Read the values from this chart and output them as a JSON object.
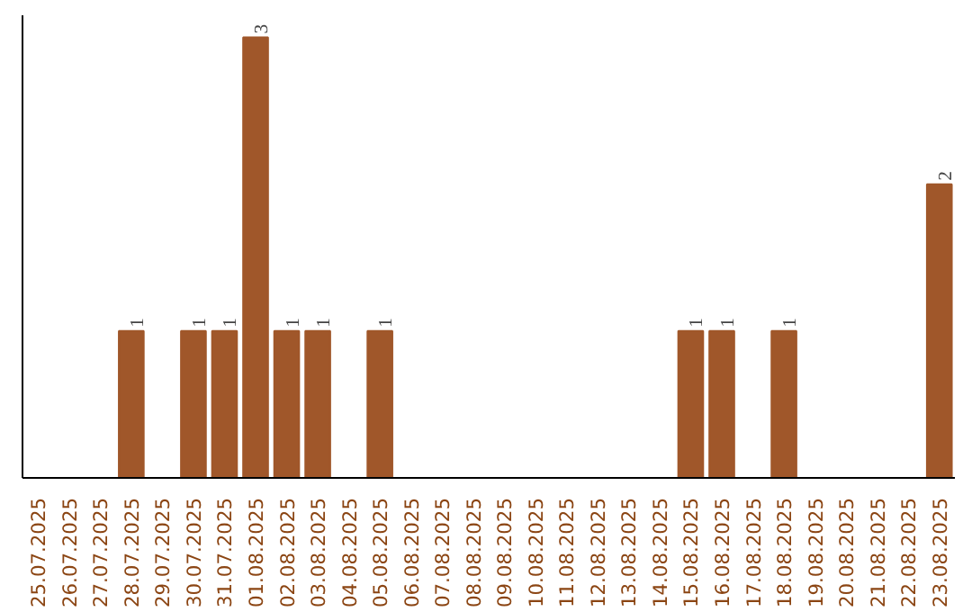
{
  "chart_data": {
    "type": "bar",
    "categories": [
      "25.07.2025",
      "26.07.2025",
      "27.07.2025",
      "28.07.2025",
      "29.07.2025",
      "30.07.2025",
      "31.07.2025",
      "01.08.2025",
      "02.08.2025",
      "03.08.2025",
      "04.08.2025",
      "05.08.2025",
      "06.08.2025",
      "07.08.2025",
      "08.08.2025",
      "09.08.2025",
      "10.08.2025",
      "11.08.2025",
      "12.08.2025",
      "13.08.2025",
      "14.08.2025",
      "15.08.2025",
      "16.08.2025",
      "17.08.2025",
      "18.08.2025",
      "19.08.2025",
      "20.08.2025",
      "21.08.2025",
      "22.08.2025",
      "23.08.2025"
    ],
    "values": [
      0,
      0,
      0,
      1,
      0,
      1,
      1,
      3,
      1,
      1,
      0,
      1,
      0,
      0,
      0,
      0,
      0,
      0,
      0,
      0,
      0,
      1,
      1,
      0,
      1,
      0,
      0,
      0,
      0,
      2
    ],
    "value_labels": [
      null,
      null,
      null,
      "1",
      null,
      "1",
      "1",
      "3",
      "1",
      "1",
      null,
      "1",
      null,
      null,
      null,
      null,
      null,
      null,
      null,
      null,
      null,
      "1",
      "1",
      null,
      "1",
      null,
      null,
      null,
      null,
      "2"
    ],
    "color": "#a0572a",
    "grid": false
  }
}
